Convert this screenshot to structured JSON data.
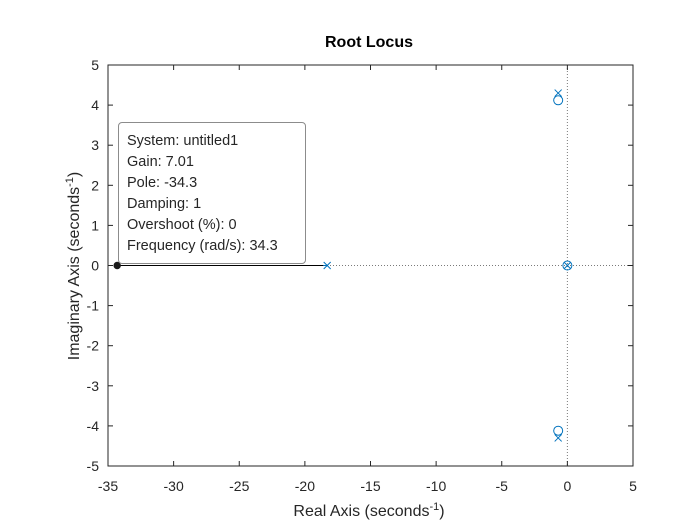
{
  "chart_data": {
    "type": "scatter",
    "title": "Root Locus",
    "xlabel": "Real Axis (seconds",
    "xlabel_sup": "-1",
    "xlabel_close": ")",
    "ylabel": "Imaginary Axis (seconds",
    "ylabel_sup": "-1",
    "ylabel_close": ")",
    "xlim": [
      -35,
      5
    ],
    "ylim": [
      -5,
      5
    ],
    "xticks": [
      -35,
      -30,
      -25,
      -20,
      -15,
      -10,
      -5,
      0,
      5
    ],
    "yticks": [
      -5,
      -4,
      -3,
      -2,
      -1,
      0,
      1,
      2,
      3,
      4,
      5
    ],
    "xtick_labels": [
      "-35",
      "-30",
      "-25",
      "-20",
      "-15",
      "-10",
      "-5",
      "0",
      "5"
    ],
    "ytick_labels": [
      "-5",
      "-4",
      "-3",
      "-2",
      "-1",
      "0",
      "1",
      "2",
      "3",
      "4",
      "5"
    ],
    "grid": false,
    "poles": [
      {
        "x": -0.7,
        "y": 4.3
      },
      {
        "x": -0.7,
        "y": -4.3
      },
      {
        "x": 0,
        "y": 0
      },
      {
        "x": -18.3,
        "y": 0
      }
    ],
    "zeros": [
      {
        "x": -0.7,
        "y": 4.12
      },
      {
        "x": -0.7,
        "y": -4.12
      },
      {
        "x": 0,
        "y": 0
      }
    ],
    "locus_branches": [
      {
        "points": [
          [
            -18.3,
            0
          ],
          [
            -34.3,
            0
          ]
        ]
      }
    ],
    "selected_point": {
      "x": -34.3,
      "y": 0
    },
    "series_color": "#0072BD",
    "datatip": {
      "system": "System: untitled1",
      "gain": "Gain: 7.01",
      "pole": "Pole: -34.3",
      "damping": "Damping: 1",
      "overshoot": "Overshoot (%): 0",
      "frequency": "Frequency (rad/s): 34.3"
    }
  }
}
